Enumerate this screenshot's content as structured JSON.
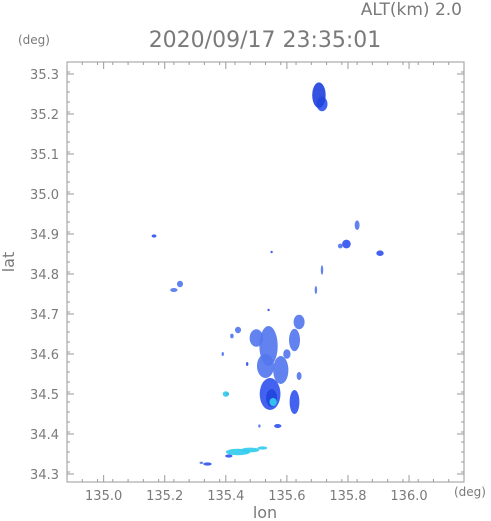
{
  "header": {
    "altitude_label": "ALT(km) 2.0",
    "datetime": "2020/09/17 23:35:01"
  },
  "chart_data": {
    "type": "heatmap",
    "title": "2020/09/17 23:35:01",
    "xlabel": "lon",
    "ylabel": "lat",
    "x_unit": "(deg)",
    "y_unit": "(deg)",
    "xlim": [
      134.88,
      136.18
    ],
    "ylim": [
      34.28,
      35.33
    ],
    "xticks": [
      135.0,
      135.2,
      135.4,
      135.6,
      135.8,
      136.0
    ],
    "xtick_labels": [
      "135.0",
      "135.2",
      "135.4",
      "135.6",
      "135.8",
      "136.0"
    ],
    "yticks": [
      34.3,
      34.4,
      34.5,
      34.6,
      34.7,
      34.8,
      34.9,
      35.0,
      35.1,
      35.2,
      35.3
    ],
    "ytick_labels": [
      "34.3",
      "34.4",
      "34.5",
      "34.6",
      "34.7",
      "34.8",
      "34.9",
      "35.0",
      "35.1",
      "35.2",
      "35.3"
    ],
    "grid": false,
    "colors": {
      "light": "#5577ee",
      "medium": "#3355ee",
      "strong": "#2244dd",
      "intense": "#33ccee"
    },
    "echoes": [
      {
        "lon": 135.705,
        "lat": 35.247,
        "rx": 0.022,
        "ry": 0.032,
        "level": "strong"
      },
      {
        "lon": 135.715,
        "lat": 35.225,
        "rx": 0.018,
        "ry": 0.018,
        "level": "medium"
      },
      {
        "lon": 135.165,
        "lat": 34.895,
        "rx": 0.008,
        "ry": 0.004,
        "level": "medium"
      },
      {
        "lon": 135.25,
        "lat": 34.775,
        "rx": 0.01,
        "ry": 0.008,
        "level": "light"
      },
      {
        "lon": 135.23,
        "lat": 34.76,
        "rx": 0.012,
        "ry": 0.005,
        "level": "light"
      },
      {
        "lon": 135.83,
        "lat": 34.922,
        "rx": 0.008,
        "ry": 0.012,
        "level": "light"
      },
      {
        "lon": 135.795,
        "lat": 34.875,
        "rx": 0.014,
        "ry": 0.011,
        "level": "medium"
      },
      {
        "lon": 135.775,
        "lat": 34.87,
        "rx": 0.008,
        "ry": 0.006,
        "level": "light"
      },
      {
        "lon": 135.905,
        "lat": 34.852,
        "rx": 0.012,
        "ry": 0.007,
        "level": "medium"
      },
      {
        "lon": 135.695,
        "lat": 34.76,
        "rx": 0.004,
        "ry": 0.01,
        "level": "light"
      },
      {
        "lon": 135.715,
        "lat": 34.81,
        "rx": 0.004,
        "ry": 0.012,
        "level": "light"
      },
      {
        "lon": 135.55,
        "lat": 34.855,
        "rx": 0.003,
        "ry": 0.003,
        "level": "medium"
      },
      {
        "lon": 135.54,
        "lat": 34.71,
        "rx": 0.003,
        "ry": 0.003,
        "level": "medium"
      },
      {
        "lon": 135.54,
        "lat": 34.62,
        "rx": 0.03,
        "ry": 0.05,
        "level": "light"
      },
      {
        "lon": 135.5,
        "lat": 34.64,
        "rx": 0.022,
        "ry": 0.022,
        "level": "light"
      },
      {
        "lon": 135.53,
        "lat": 34.57,
        "rx": 0.028,
        "ry": 0.03,
        "level": "light"
      },
      {
        "lon": 135.545,
        "lat": 34.5,
        "rx": 0.034,
        "ry": 0.04,
        "level": "medium"
      },
      {
        "lon": 135.55,
        "lat": 34.49,
        "rx": 0.018,
        "ry": 0.022,
        "level": "strong"
      },
      {
        "lon": 135.555,
        "lat": 34.48,
        "rx": 0.012,
        "ry": 0.01,
        "level": "intense"
      },
      {
        "lon": 135.58,
        "lat": 34.56,
        "rx": 0.025,
        "ry": 0.035,
        "level": "light"
      },
      {
        "lon": 135.625,
        "lat": 34.48,
        "rx": 0.016,
        "ry": 0.03,
        "level": "medium"
      },
      {
        "lon": 135.64,
        "lat": 34.545,
        "rx": 0.008,
        "ry": 0.01,
        "level": "light"
      },
      {
        "lon": 135.625,
        "lat": 34.635,
        "rx": 0.018,
        "ry": 0.028,
        "level": "light"
      },
      {
        "lon": 135.64,
        "lat": 34.68,
        "rx": 0.018,
        "ry": 0.018,
        "level": "light"
      },
      {
        "lon": 135.6,
        "lat": 34.6,
        "rx": 0.012,
        "ry": 0.012,
        "level": "light"
      },
      {
        "lon": 135.44,
        "lat": 34.66,
        "rx": 0.01,
        "ry": 0.008,
        "level": "light"
      },
      {
        "lon": 135.42,
        "lat": 34.645,
        "rx": 0.006,
        "ry": 0.006,
        "level": "light"
      },
      {
        "lon": 135.39,
        "lat": 34.6,
        "rx": 0.004,
        "ry": 0.005,
        "level": "light"
      },
      {
        "lon": 135.4,
        "lat": 34.5,
        "rx": 0.01,
        "ry": 0.007,
        "level": "intense"
      },
      {
        "lon": 135.405,
        "lat": 34.5,
        "rx": 0.005,
        "ry": 0.004,
        "level": "strong"
      },
      {
        "lon": 135.47,
        "lat": 34.575,
        "rx": 0.004,
        "ry": 0.005,
        "level": "medium"
      },
      {
        "lon": 135.57,
        "lat": 34.42,
        "rx": 0.012,
        "ry": 0.005,
        "level": "medium"
      },
      {
        "lon": 135.51,
        "lat": 34.42,
        "rx": 0.003,
        "ry": 0.004,
        "level": "light"
      },
      {
        "lon": 135.44,
        "lat": 34.355,
        "rx": 0.04,
        "ry": 0.008,
        "level": "intense"
      },
      {
        "lon": 135.48,
        "lat": 34.36,
        "rx": 0.03,
        "ry": 0.006,
        "level": "intense"
      },
      {
        "lon": 135.41,
        "lat": 34.345,
        "rx": 0.012,
        "ry": 0.004,
        "level": "medium"
      },
      {
        "lon": 135.34,
        "lat": 34.325,
        "rx": 0.014,
        "ry": 0.004,
        "level": "medium"
      },
      {
        "lon": 135.32,
        "lat": 34.328,
        "rx": 0.006,
        "ry": 0.003,
        "level": "light"
      },
      {
        "lon": 135.52,
        "lat": 34.365,
        "rx": 0.016,
        "ry": 0.004,
        "level": "intense"
      }
    ]
  }
}
